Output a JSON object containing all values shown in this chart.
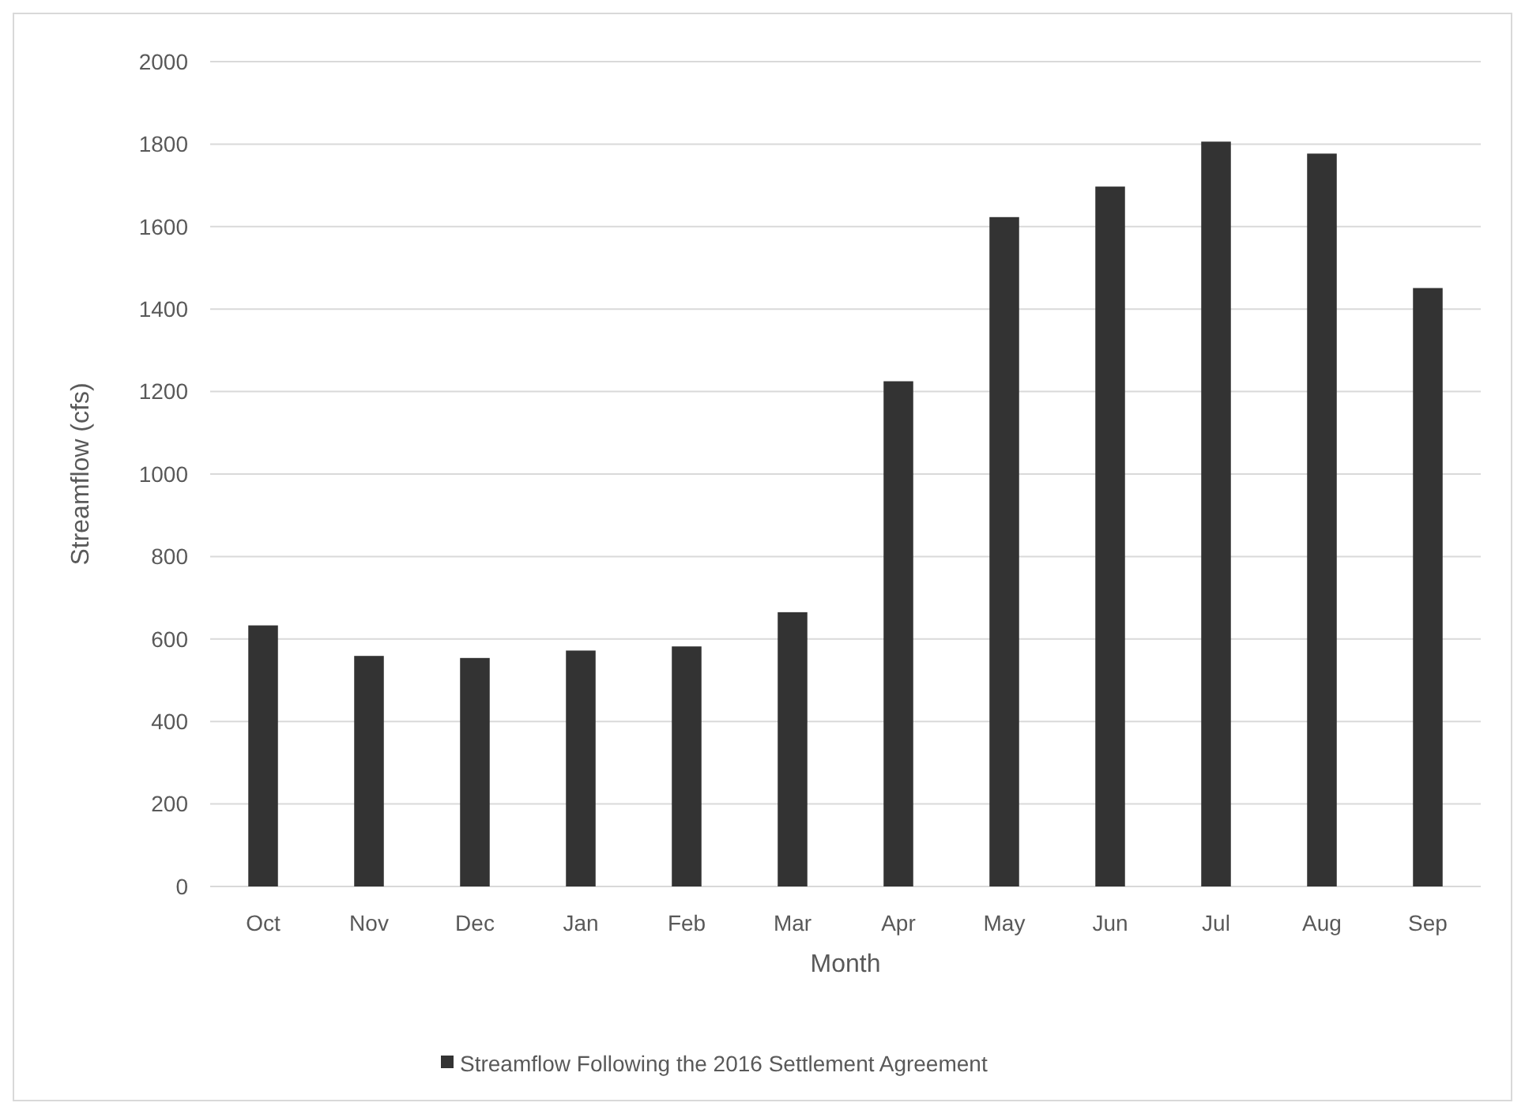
{
  "chart_data": {
    "type": "bar",
    "xlabel": "Month",
    "ylabel": "Streamflow (cfs)",
    "categories": [
      "Oct",
      "Nov",
      "Dec",
      "Jan",
      "Feb",
      "Mar",
      "Apr",
      "May",
      "Jun",
      "Jul",
      "Aug",
      "Sep"
    ],
    "series": [
      {
        "name": "Streamflow Following the 2016 Settlement Agreement",
        "color": "#333333",
        "values": [
          633,
          559,
          554,
          572,
          582,
          665,
          1225,
          1623,
          1697,
          1806,
          1777,
          1451
        ]
      }
    ],
    "ylim": [
      0,
      2000
    ],
    "yticks": [
      0,
      200,
      400,
      600,
      800,
      1000,
      1200,
      1400,
      1600,
      1800,
      2000
    ],
    "grid": "y",
    "legend": "bottom"
  }
}
